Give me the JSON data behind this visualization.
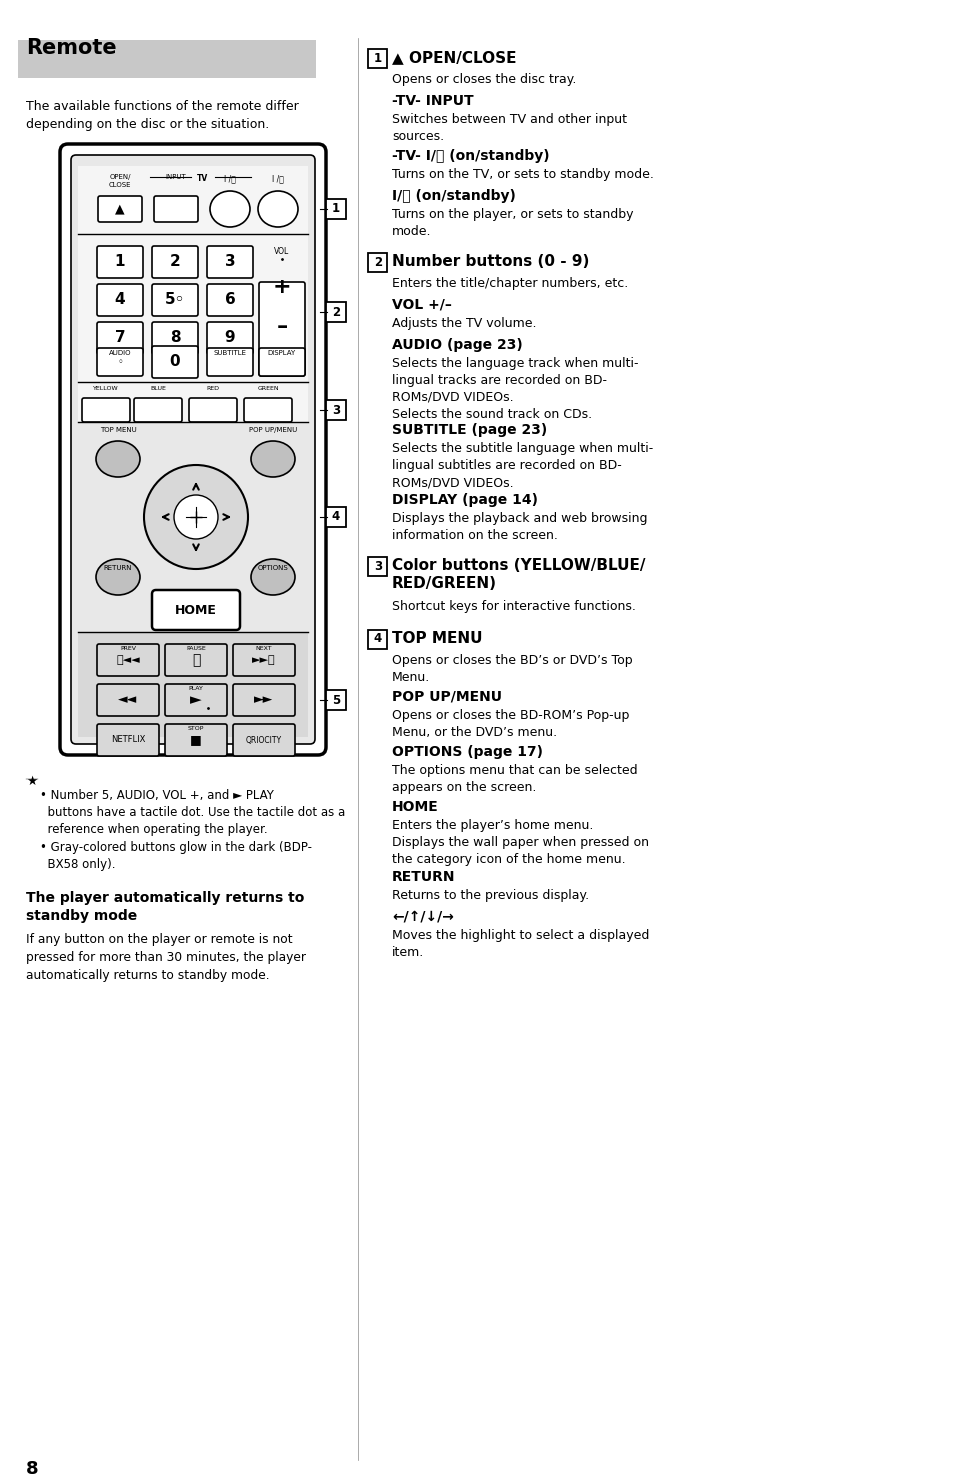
{
  "page_number": "8",
  "title": "Remote",
  "title_bg": "#c8c8c8",
  "bg_color": "#ffffff",
  "intro_text": "The available functions of the remote differ\ndepending on the disc or the situation.",
  "note_icon": "★",
  "note_bullets": [
    "Number 5, AUDIO, VOL +, and ► PLAY\nbuttons have a tactile dot. Use the tactile dot as a\nreference when operating the player.",
    "Gray-colored buttons glow in the dark (BDP-\nBX58 only)."
  ],
  "standby_title": "The player automatically returns to\nstandby mode",
  "standby_text": "If any button on the player or remote is not\npressed for more than 30 minutes, the player\nautomatically returns to standby mode.",
  "right_sections": [
    {
      "num": "1",
      "heading": "▲ OPEN/CLOSE",
      "items": [
        {
          "text": "Opens or closes the disc tray.",
          "bold": false
        },
        {
          "text": "-TV- INPUT",
          "bold": true
        },
        {
          "text": "Switches between TV and other input\nsources.",
          "bold": false
        },
        {
          "text": "-TV- I/⏻ (on/standby)",
          "bold": true
        },
        {
          "text": "Turns on the TV, or sets to standby mode.",
          "bold": false
        },
        {
          "text": "I/⏻ (on/standby)",
          "bold": true
        },
        {
          "text": "Turns on the player, or sets to standby\nmode.",
          "bold": false
        }
      ]
    },
    {
      "num": "2",
      "heading": "Number buttons (0 - 9)",
      "items": [
        {
          "text": "Enters the title/chapter numbers, etc.",
          "bold": false
        },
        {
          "text": "VOL +/–",
          "bold": true
        },
        {
          "text": "Adjusts the TV volume.",
          "bold": false
        },
        {
          "text": "AUDIO (page 23)",
          "bold": true
        },
        {
          "text": "Selects the language track when multi-\nlingual tracks are recorded on BD-\nROMs/DVD VIDEOs.\nSelects the sound track on CDs.",
          "bold": false
        },
        {
          "text": "SUBTITLE (page 23)",
          "bold": true
        },
        {
          "text": "Selects the subtitle language when multi-\nlingual subtitles are recorded on BD-\nROMs/DVD VIDEOs.",
          "bold": false
        },
        {
          "text": "DISPLAY (page 14)",
          "bold": true
        },
        {
          "text": "Displays the playback and web browsing\ninformation on the screen.",
          "bold": false
        }
      ]
    },
    {
      "num": "3",
      "heading": "Color buttons (YELLOW/BLUE/\nRED/GREEN)",
      "items": [
        {
          "text": "Shortcut keys for interactive functions.",
          "bold": false
        }
      ]
    },
    {
      "num": "4",
      "heading": "TOP MENU",
      "items": [
        {
          "text": "Opens or closes the BD’s or DVD’s Top\nMenu.",
          "bold": false
        },
        {
          "text": "POP UP/MENU",
          "bold": true
        },
        {
          "text": "Opens or closes the BD-ROM’s Pop-up\nMenu, or the DVD’s menu.",
          "bold": false
        },
        {
          "text": "OPTIONS (page 17)",
          "bold": true
        },
        {
          "text": "The options menu that can be selected\nappears on the screen.",
          "bold": false
        },
        {
          "text": "HOME",
          "bold": true
        },
        {
          "text": "Enters the player’s home menu.\nDisplays the wall paper when pressed on\nthe category icon of the home menu.",
          "bold": false
        },
        {
          "text": "RETURN",
          "bold": true
        },
        {
          "text": "Returns to the previous display.",
          "bold": false
        },
        {
          "text": "←/↑/↓/→",
          "bold": true
        },
        {
          "text": "Moves the highlight to select a displayed\nitem.",
          "bold": false
        }
      ]
    }
  ]
}
